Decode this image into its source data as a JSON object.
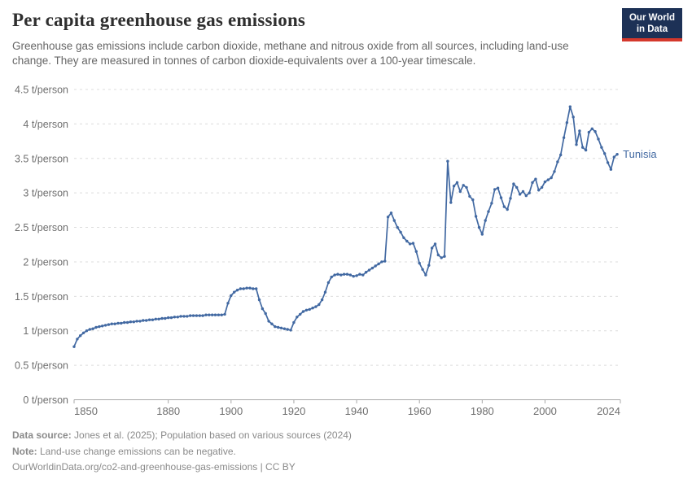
{
  "header": {
    "logo": {
      "line1": "Our World",
      "line2": "in Data"
    }
  },
  "chart_data": {
    "type": "line",
    "title": "Per capita greenhouse gas emissions",
    "subtitle": "Greenhouse gas emissions include carbon dioxide, methane and nitrous oxide from all sources, including land-use change. They are measured in tonnes of carbon dioxide-equivalents over a 100-year timescale.",
    "entity": "Tunisia",
    "unit": "t/person",
    "grid": "dashed",
    "legend_position": "end-of-line-label",
    "year_start": 1850,
    "year_end": 2023,
    "x_axis": {
      "min": 1850,
      "max": 2024,
      "ticks": [
        1850,
        1880,
        1900,
        1920,
        1940,
        1960,
        1980,
        2000,
        2024
      ]
    },
    "y_axis": {
      "min": 0,
      "max": 4.5,
      "tick_values": [
        0,
        0.5,
        1,
        1.5,
        2,
        2.5,
        3,
        3.5,
        4,
        4.5
      ],
      "tick_suffix": " t/person"
    },
    "series": [
      {
        "name": "Tunisia",
        "color": "#4269a2",
        "values": [
          0.77,
          0.88,
          0.93,
          0.97,
          1.0,
          1.02,
          1.03,
          1.05,
          1.06,
          1.07,
          1.08,
          1.09,
          1.1,
          1.1,
          1.11,
          1.11,
          1.12,
          1.12,
          1.13,
          1.13,
          1.14,
          1.14,
          1.15,
          1.15,
          1.16,
          1.16,
          1.17,
          1.17,
          1.18,
          1.18,
          1.19,
          1.19,
          1.2,
          1.2,
          1.21,
          1.21,
          1.21,
          1.22,
          1.22,
          1.22,
          1.22,
          1.22,
          1.23,
          1.23,
          1.23,
          1.23,
          1.23,
          1.23,
          1.24,
          1.4,
          1.51,
          1.56,
          1.59,
          1.61,
          1.61,
          1.62,
          1.62,
          1.61,
          1.61,
          1.45,
          1.32,
          1.25,
          1.14,
          1.1,
          1.06,
          1.05,
          1.04,
          1.03,
          1.02,
          1.01,
          1.12,
          1.2,
          1.24,
          1.28,
          1.3,
          1.31,
          1.33,
          1.35,
          1.38,
          1.45,
          1.56,
          1.7,
          1.78,
          1.81,
          1.82,
          1.81,
          1.82,
          1.82,
          1.81,
          1.79,
          1.8,
          1.82,
          1.81,
          1.85,
          1.88,
          1.91,
          1.94,
          1.97,
          2.0,
          2.01,
          2.65,
          2.71,
          2.6,
          2.5,
          2.43,
          2.35,
          2.3,
          2.26,
          2.27,
          2.15,
          1.98,
          1.89,
          1.81,
          1.95,
          2.2,
          2.26,
          2.1,
          2.06,
          2.08,
          3.46,
          2.86,
          3.1,
          3.15,
          3.02,
          3.11,
          3.08,
          2.95,
          2.9,
          2.66,
          2.5,
          2.4,
          2.6,
          2.73,
          2.85,
          3.05,
          3.07,
          2.93,
          2.8,
          2.76,
          2.92,
          3.13,
          3.08,
          2.98,
          3.02,
          2.96,
          3.0,
          3.15,
          3.2,
          3.04,
          3.08,
          3.16,
          3.19,
          3.22,
          3.31,
          3.45,
          3.55,
          3.8,
          4.02,
          4.25,
          4.1,
          3.7,
          3.9,
          3.66,
          3.62,
          3.88,
          3.93,
          3.89,
          3.78,
          3.66,
          3.57,
          3.44,
          3.34,
          3.52,
          3.56
        ]
      }
    ]
  },
  "footer": {
    "source_label": "Data source:",
    "source_text": " Jones et al. (2025); Population based on various sources (2024)",
    "note_label": "Note:",
    "note_text": " Land-use change emissions can be negative.",
    "url": "OurWorldinData.org/co2-and-greenhouse-gas-emissions",
    "license": " | CC BY"
  },
  "colors": {
    "line": "#4269a2",
    "grid": "#dcdcdc",
    "axis": "#a8a8a8",
    "tick_text": "#6f6f6f"
  }
}
